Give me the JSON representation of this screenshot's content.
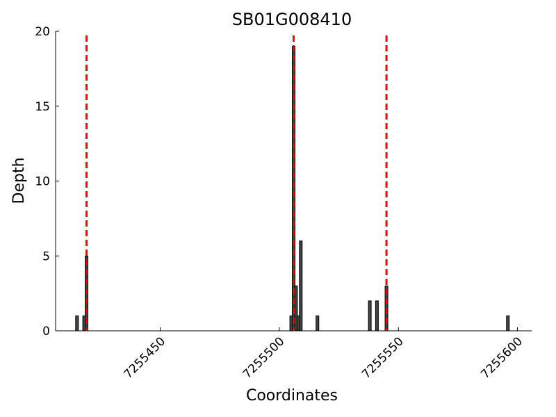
{
  "chart_data": {
    "type": "bar",
    "title": "SB01G008410",
    "x_label": "Coordinates",
    "y_label": "Depth",
    "x": [
      7255415,
      7255418,
      7255419,
      7255505,
      7255506,
      7255507,
      7255508,
      7255509,
      7255516,
      7255538,
      7255541,
      7255545,
      7255596
    ],
    "values": [
      1,
      1,
      5,
      1,
      19,
      3,
      1,
      6,
      1,
      2,
      2,
      3,
      1
    ],
    "color": "#444444",
    "xlim": [
      7255406,
      7255606
    ],
    "xticks": [
      7255450,
      7255500,
      7255550,
      7255600
    ],
    "ylim": [
      0,
      20
    ],
    "yticks": [
      0,
      5,
      10,
      15,
      20
    ],
    "vlines": {
      "x": [
        7255419,
        7255506,
        7255545
      ],
      "color": "#ff0000"
    },
    "grid": false
  }
}
